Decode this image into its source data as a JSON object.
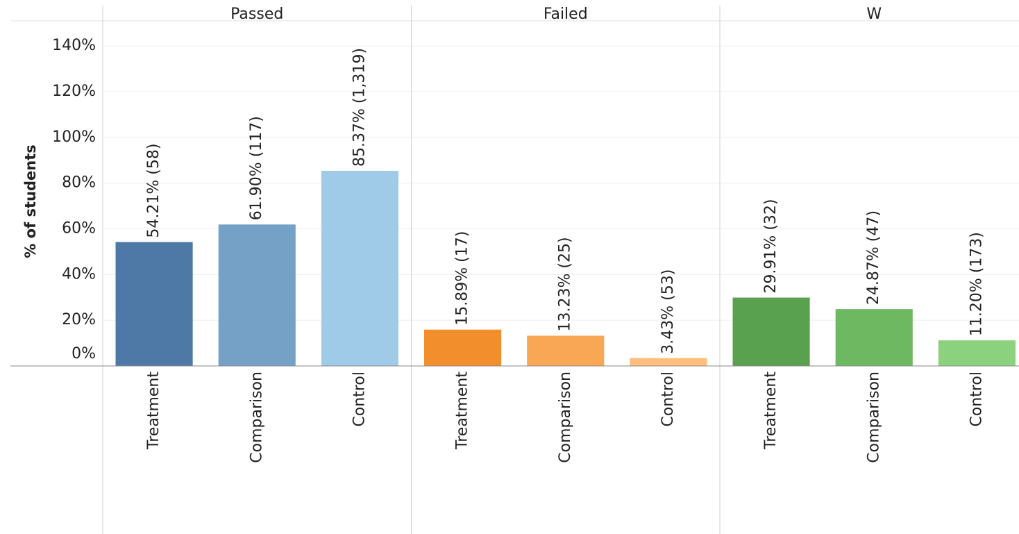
{
  "chart_data": {
    "type": "bar",
    "y_label": "% of students",
    "ylim": [
      0,
      151
    ],
    "yticks": [
      {
        "value": 0,
        "label": "0%"
      },
      {
        "value": 20,
        "label": "20%"
      },
      {
        "value": 40,
        "label": "40%"
      },
      {
        "value": 60,
        "label": "60%"
      },
      {
        "value": 80,
        "label": "80%"
      },
      {
        "value": 100,
        "label": "100%"
      },
      {
        "value": 120,
        "label": "120%"
      },
      {
        "value": 140,
        "label": "140%"
      }
    ],
    "grid": true,
    "panels": [
      {
        "title": "Passed",
        "categories": [
          "Treatment",
          "Comparison",
          "Control"
        ],
        "values": [
          54.21,
          61.9,
          85.37
        ],
        "value_labels": [
          "54.21% (58)",
          "61.90% (117)",
          "85.37% (1,319)"
        ],
        "colors": [
          "#4e78a6",
          "#75a1c7",
          "#a0cbe8"
        ]
      },
      {
        "title": "Failed",
        "categories": [
          "Treatment",
          "Comparison",
          "Control"
        ],
        "values": [
          15.89,
          13.23,
          3.43
        ],
        "value_labels": [
          "15.89% (17)",
          "13.23% (25)",
          "3.43% (53)"
        ],
        "colors": [
          "#f28e2b",
          "#f9a655",
          "#ffbe7d"
        ]
      },
      {
        "title": "W",
        "categories": [
          "Treatment",
          "Comparison",
          "Control"
        ],
        "values": [
          29.91,
          24.87,
          11.2
        ],
        "value_labels": [
          "29.91% (32)",
          "24.87% (47)",
          "11.20% (173)"
        ],
        "colors": [
          "#59a14f",
          "#6eb862",
          "#8cd17d"
        ]
      }
    ]
  }
}
